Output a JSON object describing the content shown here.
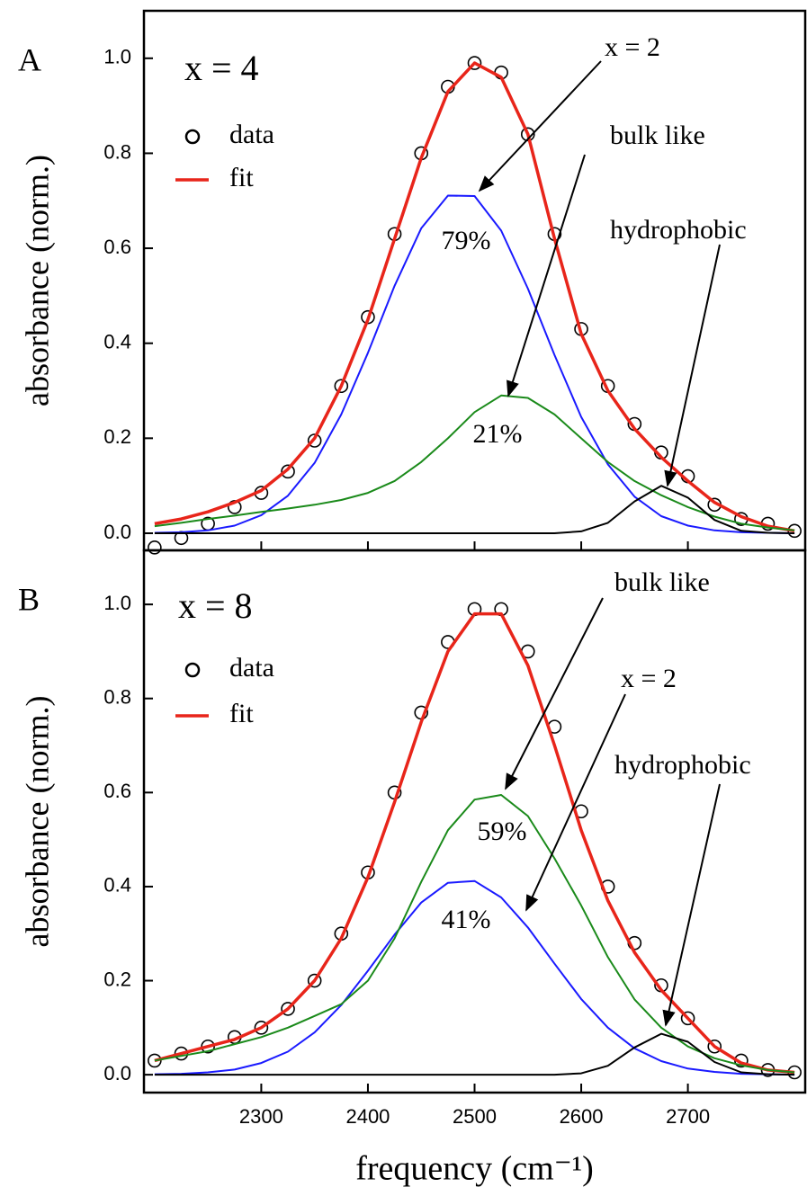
{
  "chart_data": [
    {
      "type": "line",
      "panel_label": "A",
      "ylabel": "absorbance (norm.)",
      "xlim": [
        2190,
        2810
      ],
      "xticks": [
        2300,
        2400,
        2500,
        2600,
        2700
      ],
      "xtick_labels": false,
      "ylim": [
        -0.036,
        1.1
      ],
      "yticks": [
        {
          "value": 0,
          "label": "0.0"
        },
        0.2,
        0.4,
        0.6,
        0.8,
        {
          "value": 1,
          "label": "1.0"
        }
      ],
      "x": [
        2200,
        2225,
        2250,
        2275,
        2300,
        2325,
        2350,
        2375,
        2400,
        2425,
        2450,
        2475,
        2500,
        2525,
        2550,
        2575,
        2600,
        2625,
        2650,
        2675,
        2700,
        2725,
        2750,
        2775,
        2800
      ],
      "series": [
        {
          "name": "data",
          "mode": "markers",
          "color": "#000000",
          "values": [
            -0.03,
            -0.01,
            0.02,
            0.055,
            0.085,
            0.13,
            0.195,
            0.31,
            0.455,
            0.63,
            0.8,
            0.94,
            0.99,
            0.97,
            0.84,
            0.63,
            0.43,
            0.31,
            0.23,
            0.17,
            0.12,
            0.06,
            0.03,
            0.02,
            0.005
          ]
        },
        {
          "name": "fit",
          "mode": "lines",
          "color": "#e8251a",
          "values": [
            0.02,
            0.03,
            0.045,
            0.065,
            0.09,
            0.135,
            0.2,
            0.31,
            0.45,
            0.62,
            0.79,
            0.93,
            0.99,
            0.96,
            0.84,
            0.62,
            0.42,
            0.3,
            0.22,
            0.16,
            0.11,
            0.065,
            0.035,
            0.015,
            0.005
          ]
        },
        {
          "mode": "lines",
          "color": "#1a1aff",
          "values": [
            0.001,
            0.002,
            0.006,
            0.016,
            0.038,
            0.079,
            0.148,
            0.25,
            0.38,
            0.521,
            0.642,
            0.711,
            0.71,
            0.637,
            0.515,
            0.375,
            0.245,
            0.145,
            0.077,
            0.036,
            0.016,
            0.006,
            0.002,
            0.001,
            0
          ]
        },
        {
          "mode": "lines",
          "color": "#1a8a1a",
          "values": [
            0.015,
            0.022,
            0.03,
            0.037,
            0.045,
            0.052,
            0.06,
            0.07,
            0.085,
            0.11,
            0.15,
            0.2,
            0.255,
            0.29,
            0.285,
            0.25,
            0.2,
            0.15,
            0.11,
            0.08,
            0.055,
            0.035,
            0.02,
            0.012,
            0.006
          ]
        },
        {
          "mode": "lines",
          "color": "#000000",
          "values": [
            0,
            0,
            0,
            0,
            0,
            0,
            0,
            0,
            0,
            0,
            0,
            0,
            0,
            0,
            0,
            0,
            0.004,
            0.022,
            0.067,
            0.1,
            0.075,
            0.028,
            0.005,
            0.001,
            0
          ]
        }
      ],
      "annotations": [
        {
          "text": "x = 4"
        },
        {
          "text": "x = 2"
        },
        {
          "text": "bulk like"
        },
        {
          "text": "hydrophobic"
        },
        {
          "text": "79%"
        },
        {
          "text": "21%"
        }
      ]
    },
    {
      "type": "line",
      "panel_label": "B",
      "ylabel": "absorbance (norm.)",
      "xlabel": "frequency (cm⁻¹)",
      "xlim": [
        2190,
        2810
      ],
      "xticks": [
        2300,
        2400,
        2500,
        2600,
        2700
      ],
      "xtick_labels": true,
      "ylim": [
        -0.038,
        1.115
      ],
      "yticks": [
        {
          "value": 0,
          "label": "0.0"
        },
        0.2,
        0.4,
        0.6,
        0.8,
        {
          "value": 1,
          "label": "1.0"
        }
      ],
      "x": [
        2200,
        2225,
        2250,
        2275,
        2300,
        2325,
        2350,
        2375,
        2400,
        2425,
        2450,
        2475,
        2500,
        2525,
        2550,
        2575,
        2600,
        2625,
        2650,
        2675,
        2700,
        2725,
        2750,
        2775,
        2800
      ],
      "series": [
        {
          "name": "data",
          "mode": "markers",
          "color": "#000000",
          "values": [
            0.03,
            0.045,
            0.06,
            0.08,
            0.1,
            0.14,
            0.2,
            0.3,
            0.43,
            0.6,
            0.77,
            0.92,
            0.99,
            0.99,
            0.9,
            0.74,
            0.56,
            0.4,
            0.28,
            0.19,
            0.12,
            0.06,
            0.03,
            0.01,
            0.005
          ]
        },
        {
          "name": "fit",
          "mode": "lines",
          "color": "#e8251a",
          "values": [
            0.03,
            0.045,
            0.06,
            0.075,
            0.1,
            0.14,
            0.2,
            0.29,
            0.42,
            0.58,
            0.75,
            0.9,
            0.98,
            0.98,
            0.87,
            0.7,
            0.52,
            0.37,
            0.26,
            0.18,
            0.12,
            0.06,
            0.025,
            0.01,
            0.005
          ]
        },
        {
          "mode": "lines",
          "color": "#1a1aff",
          "values": [
            0.001,
            0.002,
            0.005,
            0.011,
            0.025,
            0.049,
            0.09,
            0.148,
            0.221,
            0.298,
            0.366,
            0.408,
            0.412,
            0.377,
            0.313,
            0.236,
            0.161,
            0.1,
            0.056,
            0.029,
            0.013,
            0.006,
            0.002,
            0.001,
            0
          ]
        },
        {
          "mode": "lines",
          "color": "#1a8a1a",
          "values": [
            0.03,
            0.04,
            0.05,
            0.065,
            0.08,
            0.1,
            0.125,
            0.15,
            0.2,
            0.29,
            0.41,
            0.52,
            0.585,
            0.595,
            0.55,
            0.46,
            0.36,
            0.25,
            0.16,
            0.1,
            0.06,
            0.035,
            0.02,
            0.01,
            0.005
          ]
        },
        {
          "mode": "lines",
          "color": "#000000",
          "values": [
            0,
            0,
            0,
            0,
            0,
            0,
            0,
            0,
            0,
            0,
            0,
            0,
            0,
            0,
            0,
            0,
            0.003,
            0.019,
            0.058,
            0.087,
            0.07,
            0.027,
            0.005,
            0.001,
            0
          ]
        }
      ],
      "annotations": [
        {
          "text": "x = 8"
        },
        {
          "text": "bulk like"
        },
        {
          "text": "x = 2"
        },
        {
          "text": "hydrophobic"
        },
        {
          "text": "59%"
        },
        {
          "text": "41%"
        }
      ]
    }
  ]
}
